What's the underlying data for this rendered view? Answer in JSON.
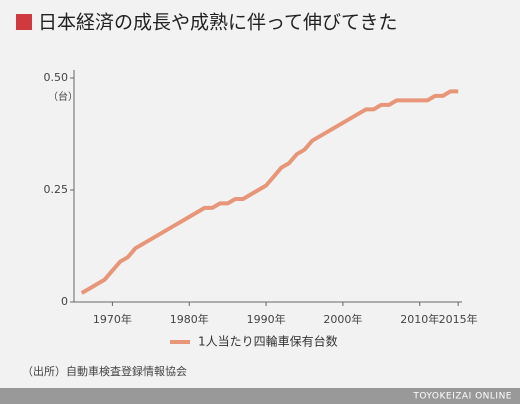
{
  "chart_data": {
    "type": "line",
    "title": "日本経済の成長や成熟に伴って伸びてきた",
    "y_unit": "（台）",
    "source": "（出所）自動車検査登録情報協会",
    "credit": "TOYOKEIZAI ONLINE",
    "x": [
      1966,
      1967,
      1968,
      1969,
      1970,
      1971,
      1972,
      1973,
      1974,
      1975,
      1976,
      1977,
      1978,
      1979,
      1980,
      1981,
      1982,
      1983,
      1984,
      1985,
      1986,
      1987,
      1988,
      1989,
      1990,
      1991,
      1992,
      1993,
      1994,
      1995,
      1996,
      1997,
      1998,
      1999,
      2000,
      2001,
      2002,
      2003,
      2004,
      2005,
      2006,
      2007,
      2008,
      2009,
      2010,
      2011,
      2012,
      2013,
      2014,
      2015
    ],
    "series": [
      {
        "name": "1人当たり四輪車保有台数",
        "color": "#e8967a",
        "values": [
          0.02,
          0.03,
          0.04,
          0.05,
          0.07,
          0.09,
          0.1,
          0.12,
          0.13,
          0.14,
          0.15,
          0.16,
          0.17,
          0.18,
          0.19,
          0.2,
          0.21,
          0.21,
          0.22,
          0.22,
          0.23,
          0.23,
          0.24,
          0.25,
          0.26,
          0.28,
          0.3,
          0.31,
          0.33,
          0.34,
          0.36,
          0.37,
          0.38,
          0.39,
          0.4,
          0.41,
          0.42,
          0.43,
          0.43,
          0.44,
          0.44,
          0.45,
          0.45,
          0.45,
          0.45,
          0.45,
          0.46,
          0.46,
          0.47,
          0.47
        ]
      }
    ],
    "xlim": [
      1965,
      2015.5
    ],
    "xticks": [
      {
        "value": 1970,
        "label": "1970年"
      },
      {
        "value": 1980,
        "label": "1980年"
      },
      {
        "value": 1990,
        "label": "1990年"
      },
      {
        "value": 2000,
        "label": "2000年"
      },
      {
        "value": 2010,
        "label": "2010年"
      },
      {
        "value": 2015,
        "label": "2015年"
      }
    ],
    "ylim": [
      0,
      0.5
    ],
    "yticks": [
      0,
      0.25,
      {
        "value": 0.5,
        "label": "0.50"
      }
    ],
    "grid": false,
    "title_marker_color": "#d0393e"
  }
}
